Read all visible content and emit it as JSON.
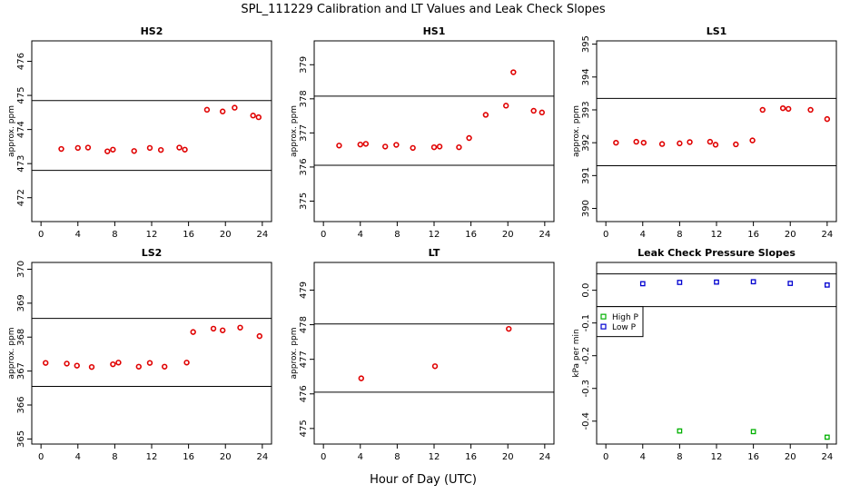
{
  "title": "SPL_111229  Calibration and LT Values and Leak Check Slopes",
  "xlabel": "Hour of Day (UTC)",
  "chart_data": [
    {
      "type": "scatter",
      "title": "HS2",
      "ylabel": "approx. ppm",
      "xlim": [
        -1,
        25
      ],
      "ylim": [
        471.3,
        476.6
      ],
      "xticks": [
        0,
        4,
        8,
        12,
        16,
        20,
        24
      ],
      "yticks": [
        472,
        473,
        474,
        475,
        476
      ],
      "hlines": [
        472.8,
        474.85
      ],
      "series": [
        {
          "marker": "o",
          "color": "#e00000",
          "x": [
            2.2,
            4.0,
            5.1,
            7.2,
            7.8,
            10.1,
            11.8,
            13.0,
            15.0,
            15.6,
            18.0,
            19.7,
            21.0,
            23.0,
            23.6
          ],
          "y": [
            473.43,
            473.46,
            473.47,
            473.36,
            473.41,
            473.37,
            473.46,
            473.4,
            473.47,
            473.41,
            474.58,
            474.53,
            474.64,
            474.41,
            474.36
          ]
        }
      ]
    },
    {
      "type": "scatter",
      "title": "HS1",
      "ylabel": "approx. ppm",
      "xlim": [
        -1,
        25
      ],
      "ylim": [
        374.4,
        379.7
      ],
      "xticks": [
        0,
        4,
        8,
        12,
        16,
        20,
        24
      ],
      "yticks": [
        375,
        376,
        377,
        378,
        379
      ],
      "hlines": [
        376.05,
        378.08
      ],
      "series": [
        {
          "marker": "o",
          "color": "#e00000",
          "x": [
            1.7,
            4.0,
            4.6,
            6.7,
            7.9,
            9.7,
            12.0,
            12.6,
            14.7,
            15.8,
            17.6,
            19.8,
            20.6,
            22.8,
            23.7
          ],
          "y": [
            376.63,
            376.66,
            376.68,
            376.6,
            376.65,
            376.56,
            376.58,
            376.6,
            376.58,
            376.85,
            377.53,
            377.8,
            378.78,
            377.65,
            377.6
          ]
        }
      ]
    },
    {
      "type": "scatter",
      "title": "LS1",
      "ylabel": "approx. ppm",
      "xlim": [
        -1,
        25
      ],
      "ylim": [
        389.6,
        395.1
      ],
      "xticks": [
        0,
        4,
        8,
        12,
        16,
        20,
        24
      ],
      "yticks": [
        390,
        391,
        392,
        393,
        394,
        395
      ],
      "hlines": [
        391.3,
        393.35
      ],
      "series": [
        {
          "marker": "o",
          "color": "#e00000",
          "x": [
            1.1,
            3.3,
            4.1,
            6.1,
            8.0,
            9.1,
            11.3,
            11.9,
            14.1,
            15.9,
            17.0,
            19.2,
            19.8,
            22.2,
            24.0
          ],
          "y": [
            392.0,
            392.03,
            392.0,
            391.96,
            391.98,
            392.02,
            392.03,
            391.94,
            391.95,
            392.07,
            393.0,
            393.05,
            393.03,
            393.0,
            392.72
          ]
        }
      ]
    },
    {
      "type": "scatter",
      "title": "LS2",
      "ylabel": "approx. ppm",
      "xlim": [
        -1,
        25
      ],
      "ylim": [
        364.85,
        370.2
      ],
      "xticks": [
        0,
        4,
        8,
        12,
        16,
        20,
        24
      ],
      "yticks": [
        365,
        366,
        367,
        368,
        369,
        370
      ],
      "hlines": [
        366.55,
        368.55
      ],
      "series": [
        {
          "marker": "o",
          "color": "#e00000",
          "x": [
            0.5,
            2.8,
            3.9,
            5.5,
            7.8,
            8.4,
            10.6,
            11.8,
            13.4,
            15.8,
            16.5,
            18.7,
            19.7,
            21.6,
            23.7
          ],
          "y": [
            367.24,
            367.22,
            367.16,
            367.12,
            367.2,
            367.25,
            367.13,
            367.24,
            367.13,
            367.25,
            368.15,
            368.25,
            368.2,
            368.28,
            368.03
          ]
        }
      ]
    },
    {
      "type": "scatter",
      "title": "LT",
      "ylabel": "approx. ppm",
      "xlim": [
        -1,
        25
      ],
      "ylim": [
        474.55,
        479.8
      ],
      "xticks": [
        0,
        4,
        8,
        12,
        16,
        20,
        24
      ],
      "yticks": [
        475,
        476,
        477,
        478,
        479
      ],
      "hlines": [
        476.05,
        478.02
      ],
      "series": [
        {
          "marker": "o",
          "color": "#e00000",
          "x": [
            4.1,
            12.1,
            20.1
          ],
          "y": [
            476.45,
            476.8,
            477.88
          ]
        }
      ]
    },
    {
      "type": "scatter",
      "title": "Leak Check Pressure Slopes",
      "ylabel": "kPa per min",
      "xlim": [
        -1,
        25
      ],
      "ylim": [
        -0.47,
        0.085
      ],
      "xticks": [
        0,
        4,
        8,
        12,
        16,
        20,
        24
      ],
      "yticks": [
        -0.4,
        -0.3,
        -0.2,
        -0.1,
        0.0
      ],
      "ytick_labels": [
        "-0.4",
        "-0.3",
        "-0.2",
        "-0.1",
        "0.0"
      ],
      "hlines": [
        -0.05,
        0.05
      ],
      "legend": {
        "placement": "top-left",
        "entries": [
          "High P",
          "Low P"
        ]
      },
      "series": [
        {
          "name": "High P",
          "marker": "s",
          "color": "#00b000",
          "x": [
            8.0,
            16.0,
            24.0
          ],
          "y": [
            -0.43,
            -0.432,
            -0.449
          ]
        },
        {
          "name": "Low P",
          "marker": "s",
          "color": "#0000d0",
          "x": [
            4.0,
            8.0,
            12.0,
            16.0,
            20.0,
            24.0
          ],
          "y": [
            0.02,
            0.024,
            0.025,
            0.026,
            0.021,
            0.016
          ]
        }
      ]
    }
  ]
}
